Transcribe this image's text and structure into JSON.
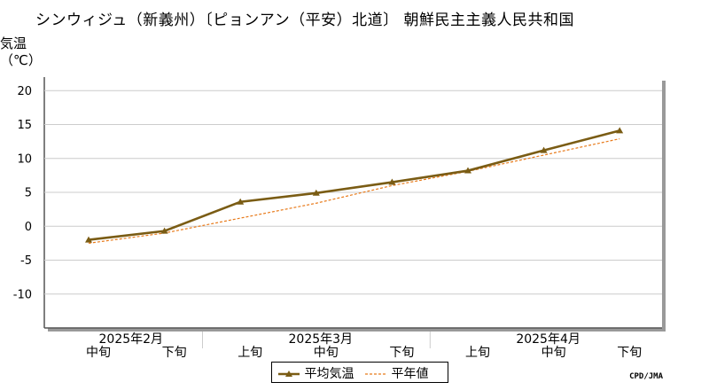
{
  "title": "シンウィジュ（新義州）〔ピョンアン（平安）北道〕 朝鮮民主主義人民共和国",
  "unit": {
    "line1": "気温",
    "line2": "（℃）"
  },
  "credit": "CPD/JMA",
  "colors": {
    "mean": "#7a5c14",
    "normal": "#e87a1a",
    "grid": "#cccccc",
    "axis": "#999999"
  },
  "chart_data": {
    "type": "line",
    "title": "シンウィジュ（新義州）〔ピョンアン（平安）北道〕 朝鮮民主主義人民共和国",
    "ylabel": "気温（℃）",
    "ylim": [
      -15,
      22
    ],
    "yticks": [
      20,
      15,
      10,
      5,
      0,
      -5,
      -10
    ],
    "grid": true,
    "legend_position": "bottom-center",
    "x_periods": [
      "中旬",
      "下旬",
      "上旬",
      "中旬",
      "下旬",
      "上旬",
      "中旬",
      "下旬"
    ],
    "x_months": [
      {
        "label": "2025年2月",
        "center_index": 0.5
      },
      {
        "label": "2025年3月",
        "center_index": 3
      },
      {
        "label": "2025年4月",
        "center_index": 6
      }
    ],
    "series": [
      {
        "name": "平均気温",
        "style": "solid-triangle-markers",
        "values": [
          -2.0,
          -0.7,
          3.6,
          4.9,
          6.5,
          8.2,
          11.2,
          14.1
        ]
      },
      {
        "name": "平年値",
        "style": "dashed",
        "values": [
          -2.5,
          -1.0,
          1.2,
          3.4,
          6.0,
          8.1,
          10.5,
          12.9
        ]
      }
    ]
  }
}
